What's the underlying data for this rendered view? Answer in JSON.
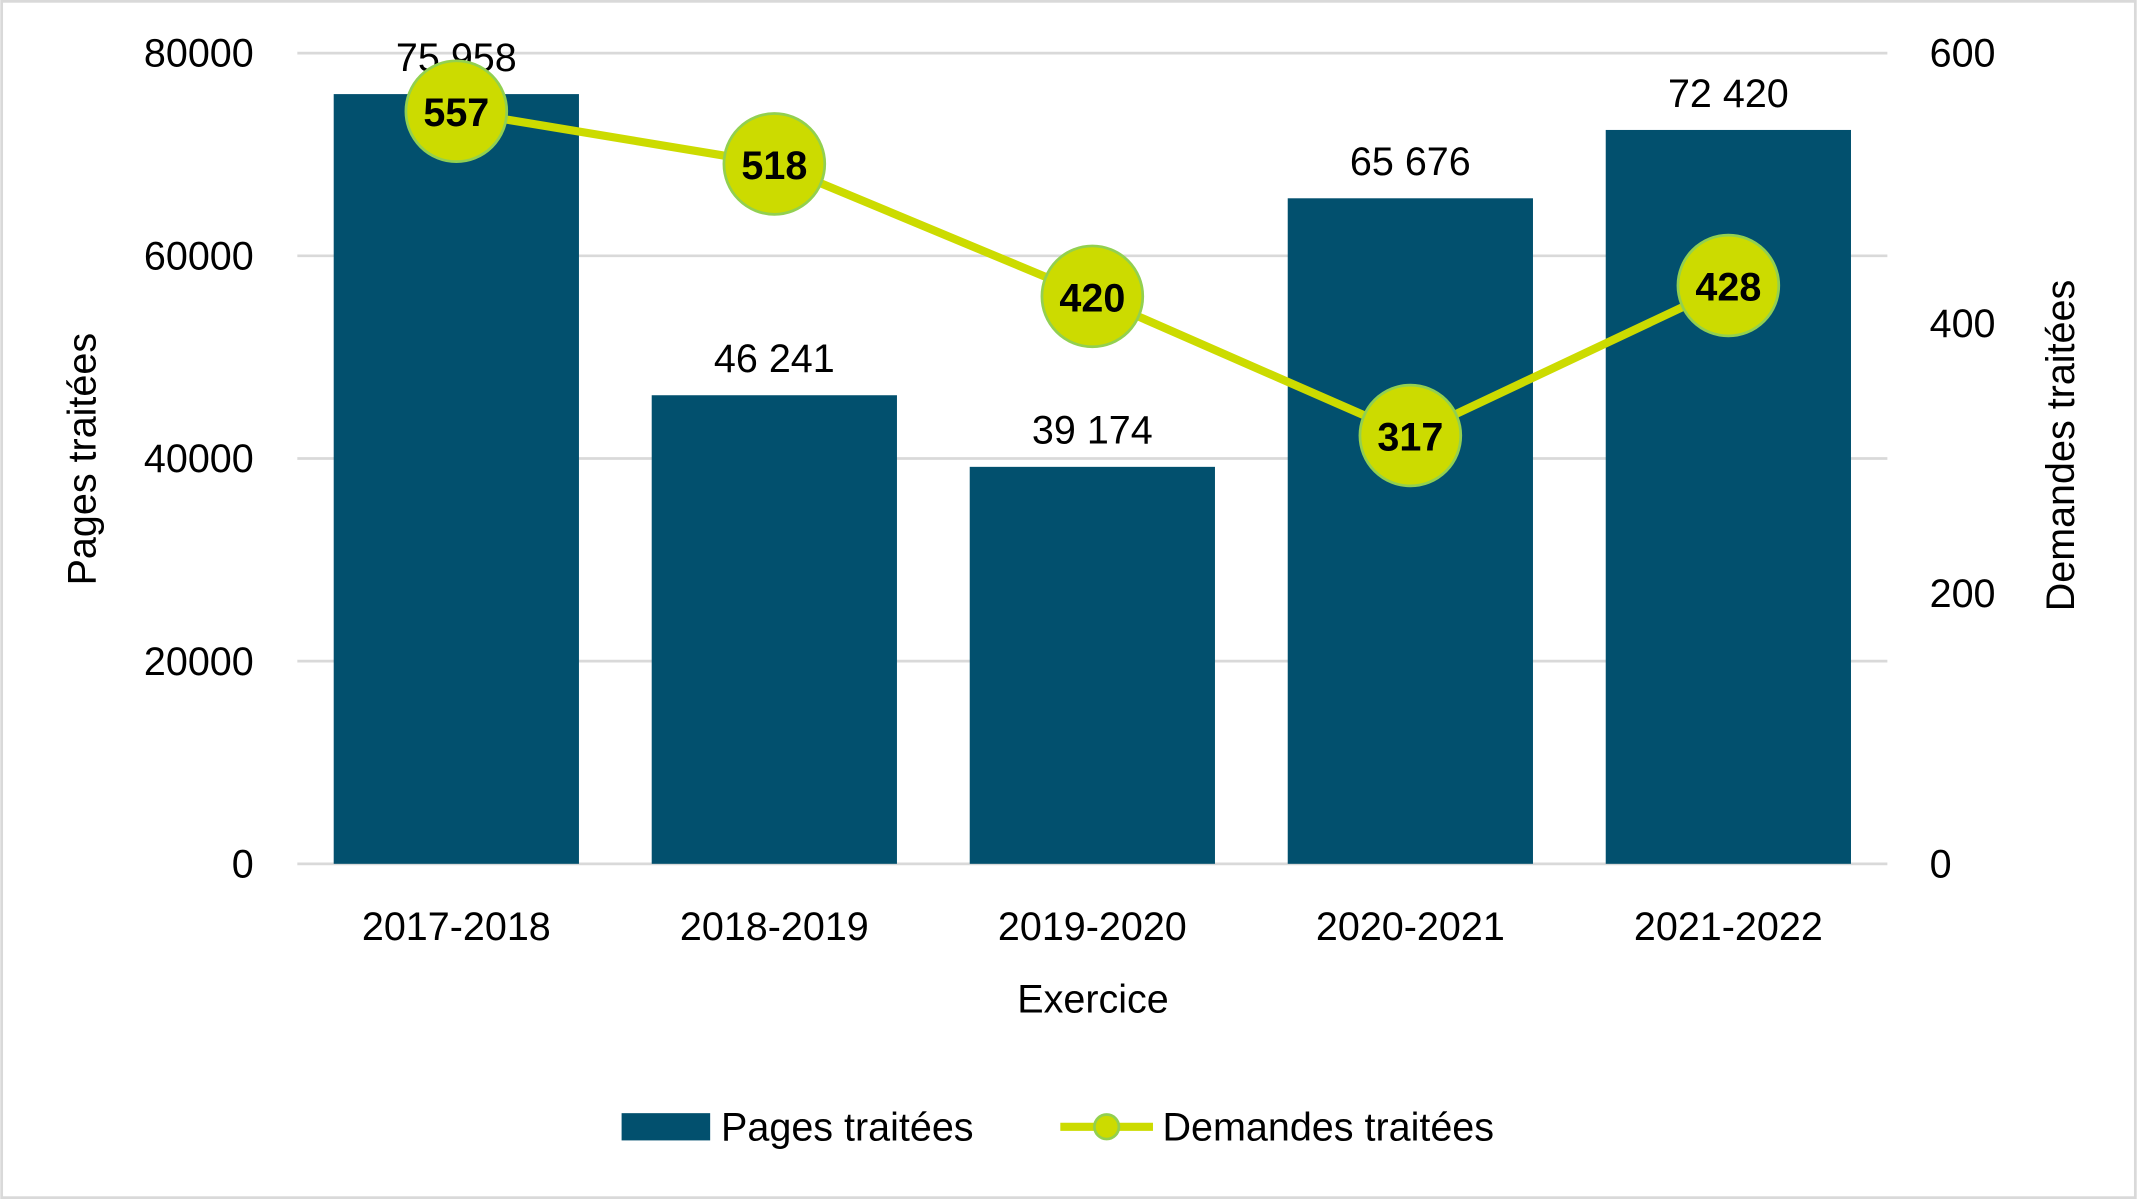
{
  "chart_data": {
    "type": "bar+line",
    "title": "",
    "xlabel": "Exercice",
    "ylabel": "Pages traitées",
    "y2label": "Demandes traitées",
    "categories": [
      "2017-2018",
      "2018-2019",
      "2019-2020",
      "2020-2021",
      "2021-2022"
    ],
    "ylim": [
      0,
      80000
    ],
    "y2lim": [
      0,
      600
    ],
    "yticks": [
      "0",
      "20000",
      "40000",
      "60000",
      "80000"
    ],
    "y2ticks": [
      "0",
      "200",
      "400",
      "600"
    ],
    "grid": true,
    "legend_position": "bottom",
    "series": [
      {
        "name": "Pages traitées",
        "type": "bar",
        "axis": "left",
        "color": "#02506E",
        "values": [
          75958,
          46241,
          39174,
          65676,
          72420
        ],
        "labels": [
          "75 958",
          "46 241",
          "39 174",
          "65 676",
          "72 420"
        ]
      },
      {
        "name": "Demandes traitées",
        "type": "line",
        "axis": "right",
        "color": "#CCDB00",
        "marker_edge": "#92D050",
        "values": [
          557,
          518,
          420,
          317,
          428
        ],
        "labels": [
          "557",
          "518",
          "420",
          "317",
          "428"
        ]
      }
    ]
  }
}
